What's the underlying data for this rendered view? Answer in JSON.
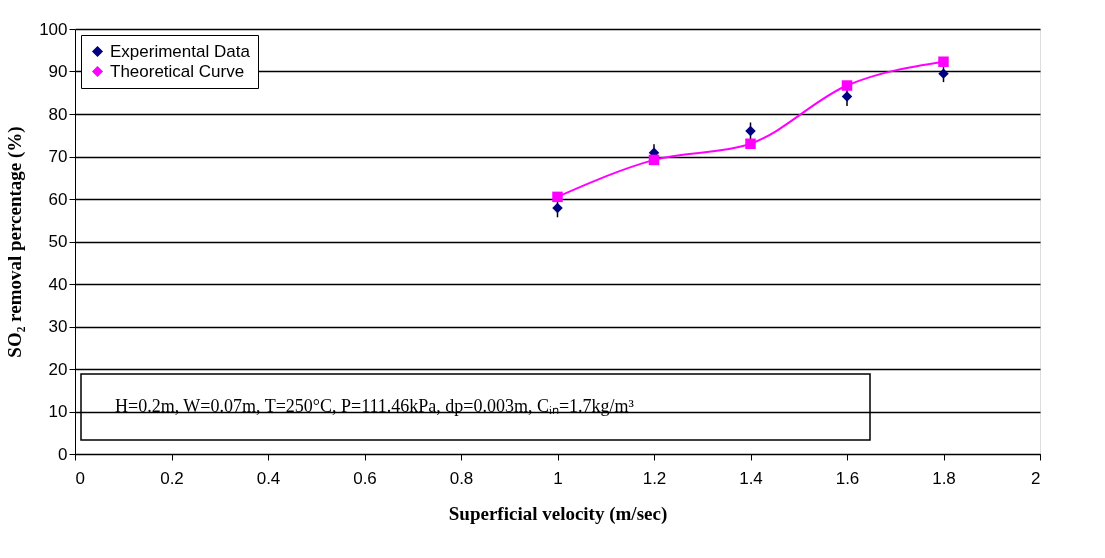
{
  "chart_data": {
    "type": "scatter",
    "xlabel": "Superficial velocity (m/sec)",
    "ylabel": "SO₂ removal percentage (%)",
    "x": [
      1.0,
      1.2,
      1.4,
      1.6,
      1.8
    ],
    "series": [
      {
        "name": "Experimental Data",
        "marker": "diamond",
        "color": "#000080",
        "values": [
          57.9,
          70.9,
          76.0,
          84.1,
          89.5
        ],
        "errors": [
          2.2,
          2.0,
          2.0,
          2.2,
          2.0
        ]
      },
      {
        "name": "Theoretical Curve",
        "type": "line",
        "line_style": "solid",
        "marker": "square",
        "color": "#ff00ff",
        "values": [
          60.5,
          69.2,
          73.0,
          86.7,
          92.3
        ]
      }
    ],
    "xlim": [
      0,
      2
    ],
    "xticks": [
      0,
      0.2,
      0.4,
      0.6,
      0.8,
      1,
      1.2,
      1.4,
      1.6,
      1.8,
      2
    ],
    "ylim": [
      0,
      100
    ],
    "yticks": [
      0,
      10,
      20,
      30,
      40,
      50,
      60,
      70,
      80,
      90,
      100
    ],
    "grid": "y",
    "legend": "top left",
    "annotations": [
      "H=0.2m, W=0.07m, T=250°C, P=111.46kPa, dp=0.003m, Cᵢₙ=1.7kg/m³"
    ]
  }
}
